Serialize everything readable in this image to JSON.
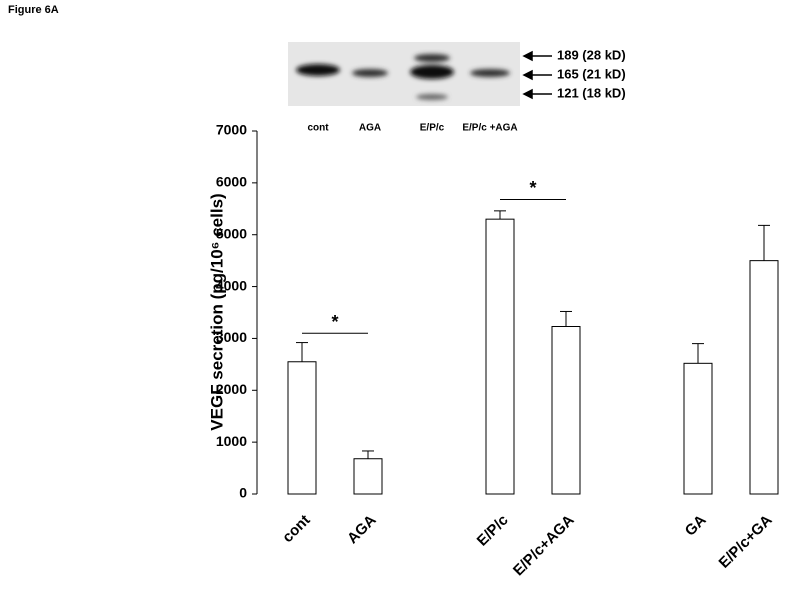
{
  "chart_data": {
    "type": "bar",
    "figure_label": "Figure  6A",
    "ylabel": "VEGF secretion (pg/10⁶ cells)",
    "categories": [
      "cont",
      "AGA",
      null,
      "E/P/c",
      "E/P/c+AGA",
      null,
      "GA",
      "E/P/c+GA"
    ],
    "values": [
      2550,
      680,
      null,
      5300,
      3230,
      null,
      2520,
      4500
    ],
    "errors": [
      370,
      150,
      null,
      160,
      290,
      null,
      380,
      680
    ],
    "color": "#ffffff",
    "ylim": [
      0,
      7000
    ],
    "yticks": [
      0,
      1000,
      2000,
      3000,
      4000,
      5000,
      6000,
      7000
    ],
    "annotations": [
      {
        "text": "*",
        "from": 0,
        "to": 1,
        "y": 3100
      },
      {
        "text": "*",
        "from": 3,
        "to": 4,
        "y": 5680
      }
    ],
    "blot": {
      "lanes": [
        "cont",
        "AGA",
        "E/P/c",
        "E/P/c +AGA"
      ],
      "bands": [
        "189 (28 kD)",
        "165 (21 kD)",
        "121 (18 kD)"
      ]
    }
  }
}
